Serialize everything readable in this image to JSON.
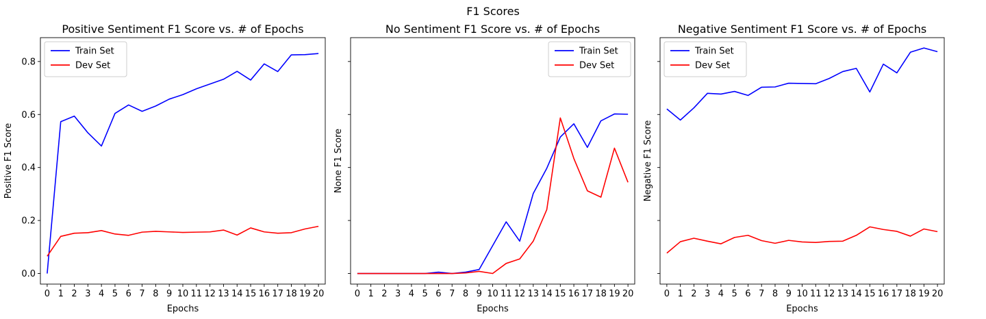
{
  "figure": {
    "suptitle": "F1 Scores"
  },
  "chart_data": [
    {
      "type": "line",
      "title": "Positive Sentiment F1 Score vs. # of Epochs",
      "xlabel": "Epochs",
      "ylabel": "Positive F1 Score",
      "x": [
        0,
        1,
        2,
        3,
        4,
        5,
        6,
        7,
        8,
        9,
        10,
        11,
        12,
        13,
        14,
        15,
        16,
        17,
        18,
        19,
        20
      ],
      "xlim": [
        -0.5,
        20.5
      ],
      "ylim": [
        -0.04,
        0.89
      ],
      "yticks": [
        0.0,
        0.2,
        0.4,
        0.6,
        0.8
      ],
      "show_ytick_labels": true,
      "grid": false,
      "legend_loc": "upper left",
      "series": [
        {
          "name": "Train Set",
          "color": "#0000ff",
          "values": [
            0.0,
            0.573,
            0.594,
            0.531,
            0.481,
            0.604,
            0.636,
            0.612,
            0.632,
            0.658,
            0.675,
            0.697,
            0.715,
            0.733,
            0.763,
            0.73,
            0.791,
            0.762,
            0.825,
            0.826,
            0.83
          ]
        },
        {
          "name": "Dev Set",
          "color": "#ff0000",
          "values": [
            0.065,
            0.14,
            0.152,
            0.154,
            0.162,
            0.149,
            0.144,
            0.156,
            0.159,
            0.157,
            0.155,
            0.156,
            0.157,
            0.164,
            0.145,
            0.172,
            0.157,
            0.152,
            0.154,
            0.168,
            0.178
          ]
        }
      ]
    },
    {
      "type": "line",
      "title": "No Sentiment F1 Score vs. # of Epochs",
      "xlabel": "Epochs",
      "ylabel": "None F1 Score",
      "x": [
        0,
        1,
        2,
        3,
        4,
        5,
        6,
        7,
        8,
        9,
        10,
        11,
        12,
        13,
        14,
        15,
        16,
        17,
        18,
        19,
        20
      ],
      "xlim": [
        -0.5,
        20.5
      ],
      "ylim": [
        -0.04,
        0.89
      ],
      "yticks": [
        0.0,
        0.2,
        0.4,
        0.6,
        0.8
      ],
      "show_ytick_labels": false,
      "grid": false,
      "legend_loc": "upper right",
      "series": [
        {
          "name": "Train Set",
          "color": "#0000ff",
          "values": [
            0.0,
            0.0,
            0.0,
            0.0,
            0.0,
            0.0,
            0.005,
            0.0,
            0.005,
            0.015,
            0.105,
            0.195,
            0.122,
            0.302,
            0.397,
            0.515,
            0.565,
            0.476,
            0.576,
            0.602,
            0.601
          ]
        },
        {
          "name": "Dev Set",
          "color": "#ff0000",
          "values": [
            0.0,
            0.0,
            0.0,
            0.0,
            0.0,
            0.0,
            0.0,
            0.0,
            0.002,
            0.008,
            0.0,
            0.038,
            0.055,
            0.122,
            0.241,
            0.587,
            0.434,
            0.312,
            0.288,
            0.473,
            0.344
          ]
        }
      ]
    },
    {
      "type": "line",
      "title": "Negative Sentiment F1 Score vs. # of Epochs",
      "xlabel": "Epochs",
      "ylabel": "Negative F1 Score",
      "x": [
        0,
        1,
        2,
        3,
        4,
        5,
        6,
        7,
        8,
        9,
        10,
        11,
        12,
        13,
        14,
        15,
        16,
        17,
        18,
        19,
        20
      ],
      "xlim": [
        -0.5,
        20.5
      ],
      "ylim": [
        -0.04,
        0.89
      ],
      "yticks": [
        0.0,
        0.2,
        0.4,
        0.6,
        0.8
      ],
      "show_ytick_labels": false,
      "grid": false,
      "legend_loc": "upper left",
      "series": [
        {
          "name": "Train Set",
          "color": "#0000ff",
          "values": [
            0.621,
            0.579,
            0.625,
            0.68,
            0.677,
            0.687,
            0.672,
            0.703,
            0.704,
            0.718,
            0.717,
            0.716,
            0.736,
            0.762,
            0.774,
            0.685,
            0.79,
            0.757,
            0.835,
            0.851,
            0.837
          ]
        },
        {
          "name": "Dev Set",
          "color": "#ff0000",
          "values": [
            0.077,
            0.12,
            0.133,
            0.122,
            0.112,
            0.136,
            0.144,
            0.124,
            0.114,
            0.125,
            0.119,
            0.117,
            0.121,
            0.122,
            0.144,
            0.176,
            0.166,
            0.159,
            0.141,
            0.168,
            0.158
          ]
        }
      ]
    }
  ]
}
